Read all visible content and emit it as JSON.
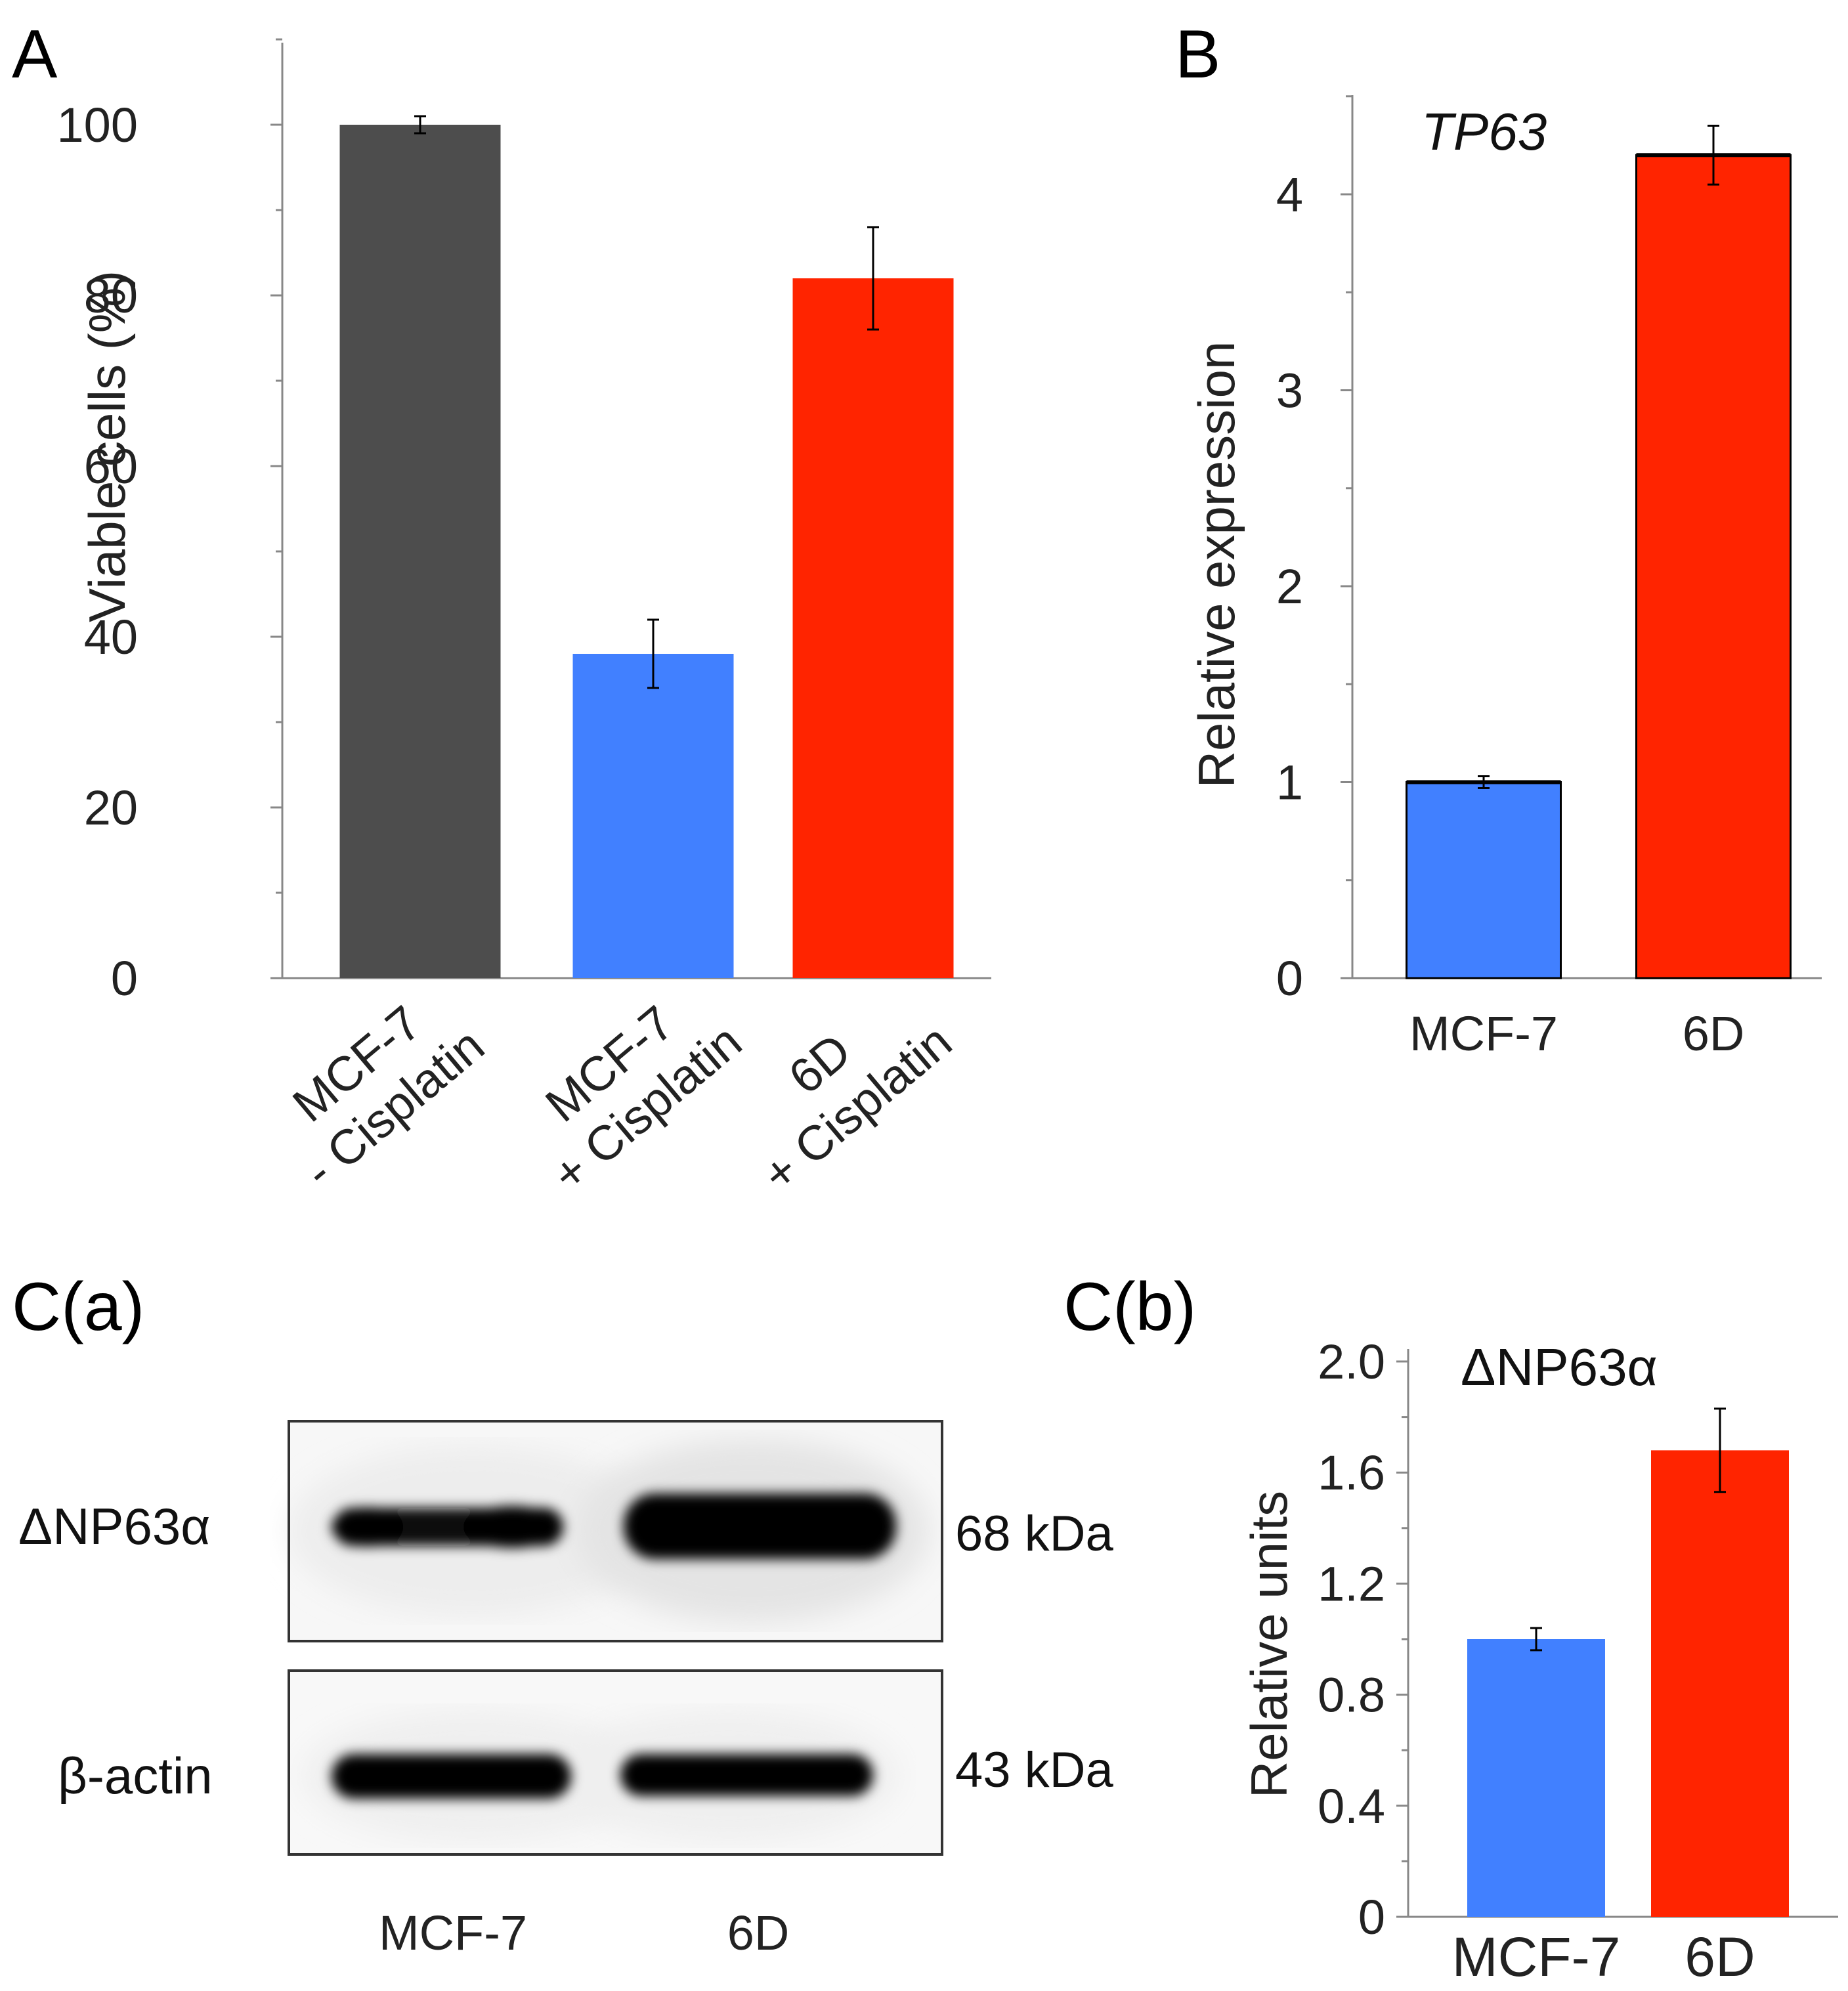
{
  "colors": {
    "gray": "#4d4d4d",
    "blue": "#4180ff",
    "red": "#ff2400",
    "axis": "#888888"
  },
  "panels": {
    "a": "A",
    "b": "B",
    "ca": "C(a)",
    "cb": "C(b)"
  },
  "chart_data": [
    {
      "id": "A",
      "type": "bar",
      "title": "",
      "xlabel": "",
      "ylabel": "Viable cells (%)",
      "ylim": [
        0,
        110
      ],
      "yticks": [
        0,
        20,
        40,
        60,
        80,
        100
      ],
      "yticks_labels": [
        "0",
        "20",
        "40",
        "60",
        "80",
        "100"
      ],
      "minor_ticks": true,
      "categories": [
        [
          "MCF-7",
          "- Cisplatin"
        ],
        [
          "MCF-7",
          "+ Cisplatin"
        ],
        [
          "6D",
          "+ Cisplatin"
        ]
      ],
      "values": [
        100,
        38,
        82
      ],
      "errors": [
        1,
        4,
        6
      ],
      "colors": [
        "#4d4d4d",
        "#4180ff",
        "#ff2400"
      ]
    },
    {
      "id": "B",
      "type": "bar",
      "title": "TP63",
      "xlabel": "",
      "ylabel": "Relative expression",
      "ylim": [
        0,
        4.5
      ],
      "yticks": [
        0,
        1,
        2,
        3,
        4
      ],
      "yticks_labels": [
        "0",
        "1",
        "2",
        "3",
        "4"
      ],
      "minor_ticks": true,
      "categories": [
        "MCF-7",
        "6D"
      ],
      "values": [
        1.0,
        4.2
      ],
      "errors": [
        0.03,
        0.15
      ],
      "colors": [
        "#4180ff",
        "#ff2400"
      ]
    },
    {
      "id": "C(b)",
      "type": "bar",
      "title": "ΔNP63α",
      "xlabel": "",
      "ylabel": "Relative units",
      "ylim": [
        0,
        2.0
      ],
      "yticks": [
        0,
        0.4,
        0.8,
        1.2,
        1.6,
        2.0
      ],
      "yticks_labels": [
        "0",
        "0.4",
        "0.8",
        "1.2",
        "1.6",
        "2.0"
      ],
      "minor_ticks": true,
      "categories": [
        "MCF-7",
        "6D"
      ],
      "values": [
        1.0,
        1.68
      ],
      "errors": [
        0.04,
        0.15
      ],
      "colors": [
        "#4180ff",
        "#ff2400"
      ]
    }
  ],
  "blot": {
    "rows": [
      {
        "label": "ΔNP63α",
        "size": "68 kDa"
      },
      {
        "label": "β-actin",
        "size": "43 kDa"
      }
    ],
    "lanes": [
      "MCF-7",
      "6D"
    ]
  }
}
